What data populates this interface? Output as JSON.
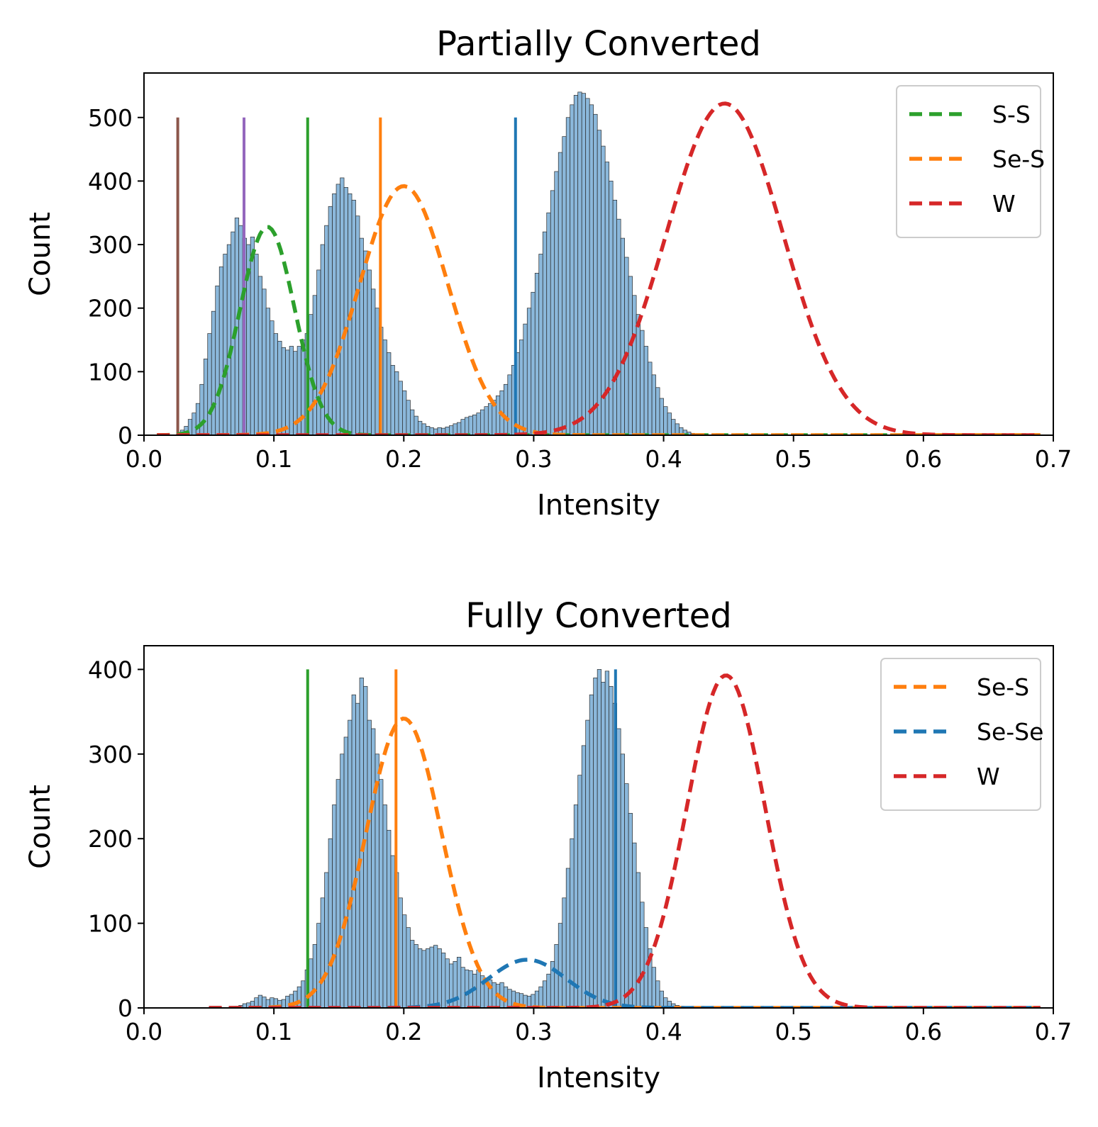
{
  "colors": {
    "histogram_fill": "#8bb8db",
    "histogram_edge": "#2b2b2b",
    "S-S": "#2ca02c",
    "Se-S": "#ff7f0e",
    "Se-Se": "#1f77b4",
    "W": "#d62728",
    "brown": "#8c564b",
    "purple": "#9467bd"
  },
  "chart_data": [
    {
      "type": "histogram",
      "title": "Partially Converted",
      "xlabel": "Intensity",
      "ylabel": "Count",
      "xlim": [
        0.0,
        0.7
      ],
      "ylim": [
        0,
        570
      ],
      "xticks": [
        "0.0",
        "0.1",
        "0.2",
        "0.3",
        "0.4",
        "0.5",
        "0.6",
        "0.7"
      ],
      "yticks": [
        "0",
        "100",
        "200",
        "300",
        "400",
        "500"
      ],
      "legend_position": "top-right",
      "legend": [
        "S-S",
        "Se-S",
        "W"
      ],
      "histogram_bins": {
        "start": 0.025,
        "width": 0.003,
        "counts": [
          2,
          8,
          14,
          25,
          35,
          50,
          80,
          120,
          160,
          195,
          235,
          265,
          285,
          300,
          320,
          342,
          330,
          310,
          300,
          312,
          285,
          250,
          230,
          200,
          180,
          160,
          148,
          138,
          134,
          140,
          132,
          140,
          150,
          160,
          190,
          220,
          260,
          300,
          330,
          360,
          380,
          395,
          405,
          390,
          380,
          370,
          345,
          310,
          290,
          260,
          230,
          200,
          170,
          150,
          130,
          110,
          100,
          85,
          70,
          55,
          40,
          30,
          22,
          18,
          14,
          12,
          10,
          12,
          11,
          13,
          15,
          18,
          20,
          25,
          28,
          30,
          32,
          35,
          40,
          45,
          50,
          55,
          62,
          70,
          80,
          95,
          110,
          130,
          150,
          175,
          200,
          225,
          255,
          285,
          320,
          350,
          385,
          415,
          445,
          470,
          500,
          520,
          535,
          540,
          538,
          530,
          520,
          505,
          480,
          455,
          430,
          400,
          370,
          340,
          310,
          280,
          250,
          220,
          190,
          165,
          140,
          115,
          95,
          75,
          58,
          45,
          35,
          25,
          18,
          12,
          8,
          5,
          3,
          2,
          1
        ]
      },
      "vertical_lines": [
        {
          "x": 0.026,
          "height": 500,
          "color": "brown"
        },
        {
          "x": 0.077,
          "height": 500,
          "color": "purple"
        },
        {
          "x": 0.126,
          "height": 500,
          "color": "S-S"
        },
        {
          "x": 0.182,
          "height": 500,
          "color": "Se-S"
        },
        {
          "x": 0.286,
          "height": 500,
          "color": "Se-Se"
        }
      ],
      "fits": [
        {
          "name": "S-S",
          "color": "S-S",
          "amplitude": 328,
          "mean": 0.095,
          "sigma": 0.021,
          "x_range": [
            0.01,
            0.69
          ]
        },
        {
          "name": "Se-S",
          "color": "Se-S",
          "amplitude": 392,
          "mean": 0.2,
          "sigma": 0.034,
          "x_range": [
            0.01,
            0.69
          ]
        },
        {
          "name": "W",
          "color": "W",
          "amplitude": 522,
          "mean": 0.447,
          "sigma": 0.045,
          "x_range": [
            0.01,
            0.69
          ]
        }
      ]
    },
    {
      "type": "histogram",
      "title": "Fully Converted",
      "xlabel": "Intensity",
      "ylabel": "Count",
      "xlim": [
        0.0,
        0.7
      ],
      "ylim": [
        0,
        428
      ],
      "xticks": [
        "0.0",
        "0.1",
        "0.2",
        "0.3",
        "0.4",
        "0.5",
        "0.6",
        "0.7"
      ],
      "yticks": [
        "0",
        "100",
        "200",
        "300",
        "400"
      ],
      "legend_position": "top-right",
      "legend": [
        "Se-S",
        "Se-Se",
        "W"
      ],
      "histogram_bins": {
        "start": 0.07,
        "width": 0.003,
        "counts": [
          2,
          3,
          5,
          6,
          8,
          12,
          15,
          13,
          10,
          12,
          11,
          9,
          10,
          14,
          16,
          20,
          25,
          32,
          45,
          58,
          75,
          100,
          130,
          160,
          200,
          240,
          270,
          300,
          320,
          340,
          370,
          360,
          390,
          380,
          340,
          330,
          300,
          270,
          240,
          210,
          180,
          160,
          130,
          110,
          95,
          80,
          75,
          70,
          68,
          70,
          72,
          74,
          70,
          65,
          58,
          52,
          55,
          60,
          48,
          45,
          44,
          40,
          45,
          38,
          35,
          33,
          30,
          28,
          30,
          25,
          22,
          20,
          18,
          17,
          15,
          14,
          16,
          20,
          25,
          32,
          40,
          55,
          75,
          100,
          130,
          165,
          200,
          240,
          275,
          310,
          340,
          370,
          390,
          400,
          385,
          398,
          380,
          360,
          330,
          300,
          265,
          230,
          195,
          160,
          125,
          95,
          70,
          48,
          32,
          20,
          12,
          8,
          5,
          3,
          2
        ]
      },
      "vertical_lines": [
        {
          "x": 0.126,
          "height": 400,
          "color": "S-S"
        },
        {
          "x": 0.194,
          "height": 400,
          "color": "Se-S"
        },
        {
          "x": 0.363,
          "height": 400,
          "color": "Se-Se"
        }
      ],
      "fits": [
        {
          "name": "Se-S",
          "color": "Se-S",
          "amplitude": 342,
          "mean": 0.2,
          "sigma": 0.029,
          "x_range": [
            0.05,
            0.69
          ]
        },
        {
          "name": "Se-Se",
          "color": "Se-Se",
          "amplitude": 57,
          "mean": 0.295,
          "sigma": 0.03,
          "x_range": [
            0.05,
            0.69
          ]
        },
        {
          "name": "W",
          "color": "W",
          "amplitude": 393,
          "mean": 0.448,
          "sigma": 0.03,
          "x_range": [
            0.05,
            0.69
          ]
        }
      ]
    }
  ]
}
